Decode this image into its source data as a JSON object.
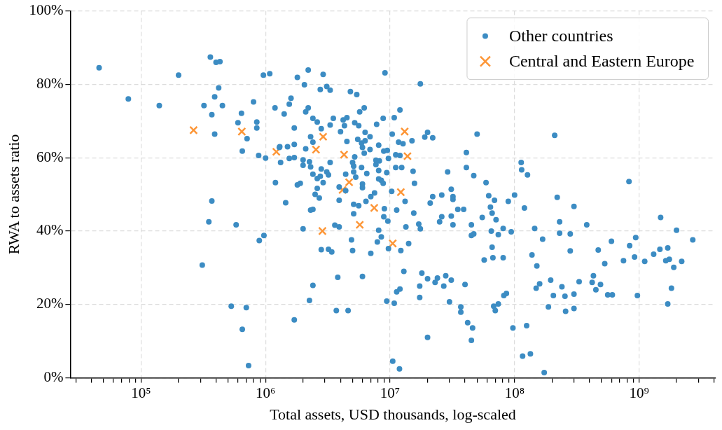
{
  "chart_data": {
    "type": "scatter",
    "xlabel": "Total assets, USD thousands, log-scaled",
    "ylabel": "RWA to assets ratio",
    "log": "x",
    "grid": true,
    "legend": "top right",
    "xlim": [
      27000,
      4100000000
    ],
    "xticks": [
      {
        "value": 30000,
        "label": null
      },
      {
        "value": 40000,
        "label": null
      },
      {
        "value": 50000,
        "label": null
      },
      {
        "value": 60000,
        "label": null
      },
      {
        "value": 70000,
        "label": null
      },
      {
        "value": 80000,
        "label": null
      },
      {
        "value": 90000,
        "label": null
      },
      {
        "value": 100000,
        "label": "10⁵"
      },
      {
        "value": 200000,
        "label": null
      },
      {
        "value": 300000,
        "label": null
      },
      {
        "value": 400000,
        "label": null
      },
      {
        "value": 500000,
        "label": null
      },
      {
        "value": 600000,
        "label": null
      },
      {
        "value": 700000,
        "label": null
      },
      {
        "value": 800000,
        "label": null
      },
      {
        "value": 900000,
        "label": null
      },
      {
        "value": 1000000,
        "label": "10⁶"
      },
      {
        "value": 2000000,
        "label": null
      },
      {
        "value": 3000000,
        "label": null
      },
      {
        "value": 4000000,
        "label": null
      },
      {
        "value": 5000000,
        "label": null
      },
      {
        "value": 6000000,
        "label": null
      },
      {
        "value": 7000000,
        "label": null
      },
      {
        "value": 8000000,
        "label": null
      },
      {
        "value": 9000000,
        "label": null
      },
      {
        "value": 10000000,
        "label": "10⁷"
      },
      {
        "value": 20000000,
        "label": null
      },
      {
        "value": 30000000,
        "label": null
      },
      {
        "value": 40000000,
        "label": null
      },
      {
        "value": 50000000,
        "label": null
      },
      {
        "value": 60000000,
        "label": null
      },
      {
        "value": 70000000,
        "label": null
      },
      {
        "value": 80000000,
        "label": null
      },
      {
        "value": 90000000,
        "label": null
      },
      {
        "value": 100000000,
        "label": "10⁸"
      },
      {
        "value": 200000000,
        "label": null
      },
      {
        "value": 300000000,
        "label": null
      },
      {
        "value": 400000000,
        "label": null
      },
      {
        "value": 500000000,
        "label": null
      },
      {
        "value": 600000000,
        "label": null
      },
      {
        "value": 700000000,
        "label": null
      },
      {
        "value": 800000000,
        "label": null
      },
      {
        "value": 900000000,
        "label": null
      },
      {
        "value": 1000000000,
        "label": "10⁹"
      },
      {
        "value": 2000000000,
        "label": null
      },
      {
        "value": 3000000000,
        "label": null
      },
      {
        "value": 4000000000,
        "label": null
      }
    ],
    "ylim": [
      0,
      100
    ],
    "yticks": [
      {
        "value": 0,
        "label": "0%"
      },
      {
        "value": 20,
        "label": "20%"
      },
      {
        "value": 40,
        "label": "40%"
      },
      {
        "value": 60,
        "label": "60%"
      },
      {
        "value": 80,
        "label": "80%"
      },
      {
        "value": 100,
        "label": "100%"
      }
    ],
    "series": [
      {
        "name": "Other countries",
        "color": "#3c8cc3",
        "marker": "circle",
        "x": [
          46000.0,
          79000.0,
          140000.0,
          200000.0,
          360000.0,
          400000.0,
          430000.0,
          960000.0,
          1080000.0,
          420000.0,
          390000.0,
          320000.0,
          450000.0,
          370000.0,
          800000.0,
          640000.0,
          600000.0,
          850000.0,
          850000.0,
          710000.0,
          390000.0,
          1190000.0,
          1410000.0,
          650000.0,
          880000.0,
          1000000.0,
          1290000.0,
          1320000.0,
          1200000.0,
          370000.0,
          350000.0,
          580000.0,
          890000.0,
          970000.0,
          310000.0,
          530000.0,
          700000.0,
          650000.0,
          730000.0,
          1450000.0,
          2200000.0,
          1800000.0,
          2900000.0,
          2050000.0,
          2750000.0,
          3100000.0,
          3300000.0,
          4800000.0,
          5400000.0,
          9100000.0,
          17500000.0,
          1600000.0,
          1550000.0,
          2100000.0,
          2200000.0,
          2400000.0,
          2600000.0,
          3500000.0,
          4200000.0,
          4500000.0,
          5700000.0,
          6200000.0,
          4300000.0,
          3300000.0,
          2800000.0,
          1700000.0,
          5200000.0,
          5600000.0,
          7800000.0,
          8800000.0,
          10800000.0,
          12000000.0,
          6300000.0,
          4000000.0,
          2300000.0,
          2400000.0,
          1700000.0,
          1500000.0,
          1300000.0,
          2100000.0,
          4500000.0,
          5500000.0,
          5900000.0,
          6300000.0,
          6900000.0,
          6000000.0,
          6900000.0,
          8100000.0,
          6200000.0,
          10400000.0,
          11700000.0,
          12700000.0,
          15000000.0,
          19000000.0,
          20000000.0,
          22000000.0,
          8900000.0,
          9500000.0,
          11100000.0,
          12000000.0,
          9700000.0,
          5200000.0,
          1550000.0,
          1700000.0,
          2000000.0,
          2250000.0,
          2000000.0,
          2300000.0,
          3300000.0,
          2800000.0,
          3100000.0,
          3200000.0,
          2400000.0,
          2750000.0,
          2600000.0,
          2900000.0,
          5000000.0,
          5100000.0,
          7700000.0,
          8200000.0,
          7700000.0,
          5900000.0,
          6500000.0,
          8100000.0,
          5100000.0,
          5300000.0,
          4400000.0,
          9400000.0,
          8100000.0,
          8500000.0,
          8800000.0,
          11100000.0,
          12400000.0,
          15300000.0,
          15700000.0,
          1800000.0,
          1900000.0,
          2600000.0,
          2500000.0,
          2700000.0,
          3900000.0,
          4400000.0,
          6000000.0,
          6000000.0,
          7500000.0,
          7000000.0,
          6400000.0,
          10300000.0,
          13200000.0,
          3900000.0,
          5100000.0,
          5600000.0,
          2300000.0,
          2400000.0,
          5100000.0,
          9000000.0,
          8900000.0,
          9600000.0,
          11300000.0,
          15500000.0,
          17000000.0,
          17500000.0,
          13400000.0,
          25000000.0,
          22000000.0,
          21000000.0,
          2000000.0,
          3600000.0,
          3900000.0,
          8100000.0,
          8500000.0,
          7900000.0,
          4900000.0,
          2800000.0,
          3200000.0,
          3400000.0,
          5000000.0,
          7000000.0,
          9700000.0,
          12200000.0,
          14100000.0,
          3800000.0,
          6000000.0,
          2400000.0,
          2250000.0,
          12900000.0,
          18000000.0,
          20000000.0,
          24000000.0,
          23000000.0,
          17300000.0,
          17300000.0,
          11300000.0,
          12000000.0,
          9400000.0,
          10800000.0,
          3700000.0,
          4600000.0,
          1700000.0,
          20000000.0,
          10500000.0,
          11900000.0,
          50000000.0,
          210000000.0,
          41000000.0,
          41000000.0,
          29000000.0,
          47000000.0,
          59000000.0,
          31000000.0,
          26000000.0,
          32000000.0,
          32000000.0,
          35000000.0,
          39000000.0,
          31000000.0,
          26000000.0,
          32000000.0,
          45000000.0,
          45000000.0,
          47000000.0,
          55000000.0,
          62000000.0,
          69000000.0,
          64000000.0,
          66000000.0,
          71000000.0,
          89000000.0,
          100000000.0,
          113000000.0,
          114000000.0,
          127000000.0,
          120000000.0,
          65000000.0,
          74000000.0,
          81000000.0,
          94000000.0,
          66000000.0,
          67000000.0,
          57000000.0,
          81000000.0,
          145000000.0,
          168000000.0,
          220000000.0,
          230000000.0,
          230000000.0,
          280000000.0,
          280000000.0,
          300000000.0,
          380000000.0,
          138000000.0,
          151000000.0,
          27000000.0,
          28000000.0,
          31000000.0,
          40000000.0,
          30000000.0,
          37000000.0,
          37000000.0,
          42000000.0,
          46000000.0,
          45000000.0,
          86000000.0,
          82000000.0,
          68000000.0,
          70000000.0,
          74000000.0,
          97000000.0,
          125000000.0,
          116000000.0,
          134000000.0,
          173000000.0,
          149000000.0,
          159000000.0,
          195000000.0,
          187000000.0,
          205000000.0,
          240000000.0,
          254000000.0,
          300000000.0,
          257000000.0,
          300000000.0,
          330000000.0,
          420000000.0,
          830000000.0,
          1490000000.0,
          2000000000.0,
          2700000000.0,
          600000000.0,
          470000000.0,
          840000000.0,
          940000000.0,
          920000000.0,
          750000000.0,
          530000000.0,
          1110000000.0,
          1310000000.0,
          1470000000.0,
          1700000000.0,
          1640000000.0,
          1750000000.0,
          2200000000.0,
          1900000000.0,
          430000000.0,
          490000000.0,
          450000000.0,
          560000000.0,
          610000000.0,
          970000000.0,
          1820000000.0,
          1700000000.0
        ],
        "values": [
          84.5,
          76.0,
          74.2,
          82.5,
          87.4,
          86.0,
          86.2,
          82.5,
          82.9,
          79.0,
          76.6,
          74.2,
          74.2,
          71.7,
          75.2,
          72.1,
          69.5,
          69.7,
          68.1,
          65.2,
          66.4,
          73.6,
          71.9,
          61.8,
          60.6,
          59.9,
          62.8,
          58.7,
          53.2,
          48.2,
          42.5,
          41.7,
          37.4,
          38.8,
          30.7,
          19.5,
          19.1,
          13.2,
          3.3,
          47.7,
          83.9,
          81.9,
          82.7,
          79.9,
          78.6,
          79.4,
          78.4,
          78.0,
          77.2,
          83.1,
          80.1,
          76.2,
          74.6,
          72.5,
          73.6,
          70.7,
          69.7,
          70.7,
          70.3,
          70.9,
          72.5,
          73.6,
          68.7,
          68.9,
          67.9,
          68.1,
          69.5,
          68.7,
          69.1,
          70.7,
          70.9,
          73.0,
          66.9,
          67.1,
          65.7,
          64.2,
          63.6,
          63.0,
          63.0,
          62.4,
          64.4,
          65.0,
          64.0,
          64.6,
          65.7,
          62.8,
          62.2,
          63.4,
          61.2,
          66.4,
          64.2,
          63.8,
          64.6,
          65.6,
          66.9,
          65.4,
          61.8,
          62.0,
          60.8,
          60.6,
          59.8,
          60.2,
          59.8,
          60.0,
          59.4,
          58.9,
          57.9,
          57.5,
          58.7,
          56.9,
          56.1,
          55.3,
          55.5,
          54.9,
          54.3,
          53.2,
          58.7,
          57.7,
          59.3,
          59.1,
          58.1,
          57.3,
          55.7,
          56.5,
          56.1,
          54.7,
          55.5,
          55.9,
          54.2,
          53.8,
          53.0,
          57.3,
          57.3,
          56.3,
          53.0,
          52.6,
          53.0,
          51.6,
          50.0,
          49.0,
          52.0,
          51.0,
          52.8,
          51.8,
          50.4,
          49.4,
          48.1,
          50.8,
          48.1,
          48.4,
          47.3,
          46.9,
          45.7,
          45.9,
          44.7,
          46.1,
          43.9,
          42.7,
          45.7,
          44.9,
          41.9,
          40.6,
          41.1,
          42.5,
          49.4,
          47.6,
          40.6,
          41.6,
          41.1,
          40.2,
          38.4,
          37.0,
          37.6,
          34.9,
          35.0,
          34.3,
          34.7,
          33.9,
          35.2,
          34.7,
          36.6,
          27.4,
          27.6,
          25.2,
          21.1,
          29.0,
          28.5,
          27.0,
          27.2,
          26.0,
          25.0,
          21.9,
          23.4,
          24.2,
          20.9,
          20.3,
          18.3,
          18.3,
          15.8,
          11.0,
          4.5,
          2.4,
          66.4,
          66.1,
          61.4,
          57.3,
          56.1,
          55.1,
          53.2,
          51.4,
          49.8,
          49.4,
          48.6,
          45.9,
          45.9,
          44.1,
          43.9,
          41.7,
          41.7,
          38.8,
          39.2,
          43.7,
          49.6,
          48.4,
          46.5,
          44.9,
          43.1,
          48.1,
          49.8,
          58.7,
          56.7,
          55.3,
          46.3,
          40.0,
          39.0,
          40.7,
          39.8,
          35.6,
          32.7,
          32.1,
          32.7,
          40.7,
          37.8,
          49.2,
          42.5,
          39.4,
          39.2,
          34.6,
          46.7,
          41.7,
          33.5,
          30.5,
          25.0,
          27.8,
          26.6,
          25.4,
          20.7,
          19.3,
          17.9,
          15.0,
          13.6,
          10.2,
          23.0,
          22.4,
          19.5,
          18.3,
          20.1,
          13.6,
          14.2,
          5.9,
          6.5,
          1.4,
          24.4,
          25.6,
          26.6,
          19.3,
          22.4,
          24.8,
          22.2,
          22.8,
          18.1,
          18.9,
          26.2,
          26.0,
          53.5,
          43.7,
          40.2,
          37.6,
          37.2,
          34.8,
          36.0,
          38.2,
          32.9,
          31.9,
          31.1,
          31.7,
          33.7,
          35.0,
          35.4,
          31.9,
          32.3,
          31.7,
          30.1,
          27.8,
          25.4,
          24.0,
          22.6,
          22.6,
          22.4,
          24.4,
          20.1
        ]
      },
      {
        "name": "Central and Eastern Europe",
        "color": "#fd9637",
        "marker": "cross",
        "x": [
          264000.0,
          644000.0,
          1220000.0,
          2540000.0,
          2900000.0,
          4270000.0,
          13100000.0,
          13800000.0,
          4690000.0,
          4150000.0,
          12200000.0,
          7460000.0,
          5710000.0,
          2860000.0,
          10500000.0
        ],
        "values": [
          67.5,
          67.1,
          61.6,
          62.2,
          65.7,
          60.8,
          67.1,
          60.4,
          53.3,
          51.2,
          50.6,
          46.3,
          41.7,
          40.0,
          36.6
        ]
      }
    ]
  }
}
